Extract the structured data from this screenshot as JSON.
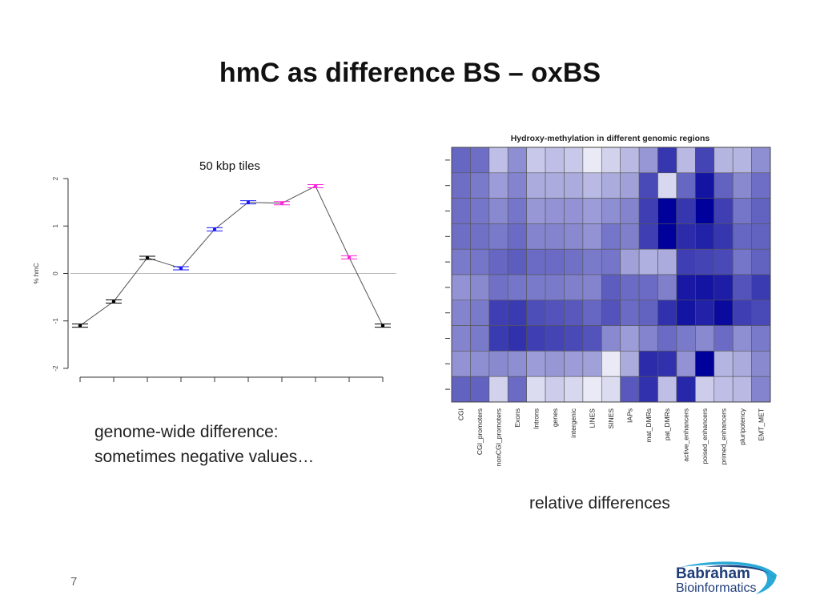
{
  "slide": {
    "title": "hmC as difference BS – oxBS",
    "caption_left_line1": "genome-wide difference:",
    "caption_left_line2": "sometimes negative values…",
    "caption_right": "relative differences",
    "page_number": "7",
    "logo_line1": "Babraham",
    "logo_line2": "Bioinformatics"
  },
  "colors": {
    "black_point": "#000000",
    "blue_point": "#1a1aff",
    "magenta_point": "#ff22dd",
    "line": "#555555",
    "zero_line": "#bbbbbb",
    "heat_low": "#f4f4fb",
    "heat_high": "#00009a",
    "logo_text": "#1f3d7a",
    "logo_swoosh": "#29a9d8"
  },
  "chart_data": [
    {
      "type": "line",
      "title": "50 kbp tiles",
      "xlabel": "",
      "ylabel": "% hmC",
      "ylim": [
        -2,
        2
      ],
      "yticks": [
        -2,
        -1,
        0,
        1,
        2
      ],
      "reference_line": 0,
      "x": [
        1,
        2,
        3,
        4,
        5,
        6,
        7,
        8,
        9,
        10
      ],
      "y": [
        -1.1,
        -0.59,
        0.33,
        0.11,
        0.93,
        1.5,
        1.48,
        1.84,
        0.34,
        -1.1
      ],
      "point_colors": [
        "black",
        "black",
        "black",
        "blue",
        "blue",
        "blue",
        "magenta",
        "magenta",
        "magenta",
        "black"
      ]
    },
    {
      "type": "heatmap",
      "title": "Hydroxy-methylation in different genomic regions",
      "columns": [
        "CGI",
        "CGI_promoters",
        "nonCGI_promoters",
        "Exons",
        "Introns",
        "genes",
        "intergenic",
        "LINES",
        "SINES",
        "IAPs",
        "mat_DMRs",
        "pat_DMRs",
        "active_enhancers",
        "poised_enhancers",
        "primed_enhancers",
        "pluripotency",
        "EMT_MET"
      ],
      "values": [
        [
          0.58,
          0.55,
          0.22,
          0.42,
          0.18,
          0.22,
          0.18,
          0.04,
          0.14,
          0.24,
          0.38,
          0.78,
          0.24,
          0.72,
          0.26,
          0.26,
          0.42
        ],
        [
          0.55,
          0.5,
          0.36,
          0.46,
          0.3,
          0.3,
          0.3,
          0.24,
          0.3,
          0.34,
          0.7,
          0.12,
          0.58,
          0.92,
          0.6,
          0.44,
          0.55
        ],
        [
          0.55,
          0.52,
          0.44,
          0.52,
          0.38,
          0.4,
          0.4,
          0.36,
          0.42,
          0.46,
          0.74,
          1.0,
          0.78,
          1.0,
          0.74,
          0.52,
          0.6
        ],
        [
          0.55,
          0.54,
          0.5,
          0.56,
          0.46,
          0.46,
          0.44,
          0.4,
          0.52,
          0.48,
          0.74,
          1.0,
          0.82,
          0.86,
          0.78,
          0.58,
          0.6
        ],
        [
          0.5,
          0.52,
          0.58,
          0.62,
          0.56,
          0.56,
          0.54,
          0.5,
          0.52,
          0.34,
          0.28,
          0.3,
          0.74,
          0.72,
          0.7,
          0.52,
          0.6
        ],
        [
          0.4,
          0.44,
          0.54,
          0.52,
          0.5,
          0.5,
          0.48,
          0.46,
          0.62,
          0.56,
          0.56,
          0.48,
          0.9,
          0.92,
          0.88,
          0.66,
          0.76
        ],
        [
          0.46,
          0.5,
          0.74,
          0.76,
          0.68,
          0.66,
          0.64,
          0.58,
          0.66,
          0.56,
          0.6,
          0.8,
          0.92,
          0.86,
          0.96,
          0.74,
          0.7
        ],
        [
          0.46,
          0.5,
          0.76,
          0.8,
          0.74,
          0.72,
          0.7,
          0.66,
          0.44,
          0.36,
          0.46,
          0.56,
          0.5,
          0.44,
          0.56,
          0.42,
          0.5
        ],
        [
          0.4,
          0.42,
          0.44,
          0.42,
          0.36,
          0.38,
          0.36,
          0.34,
          0.04,
          0.3,
          0.82,
          0.8,
          0.4,
          1.0,
          0.26,
          0.3,
          0.44
        ],
        [
          0.6,
          0.6,
          0.14,
          0.56,
          0.1,
          0.16,
          0.12,
          0.04,
          0.1,
          0.64,
          0.8,
          0.22,
          0.84,
          0.16,
          0.22,
          0.24,
          0.46
        ]
      ]
    }
  ]
}
